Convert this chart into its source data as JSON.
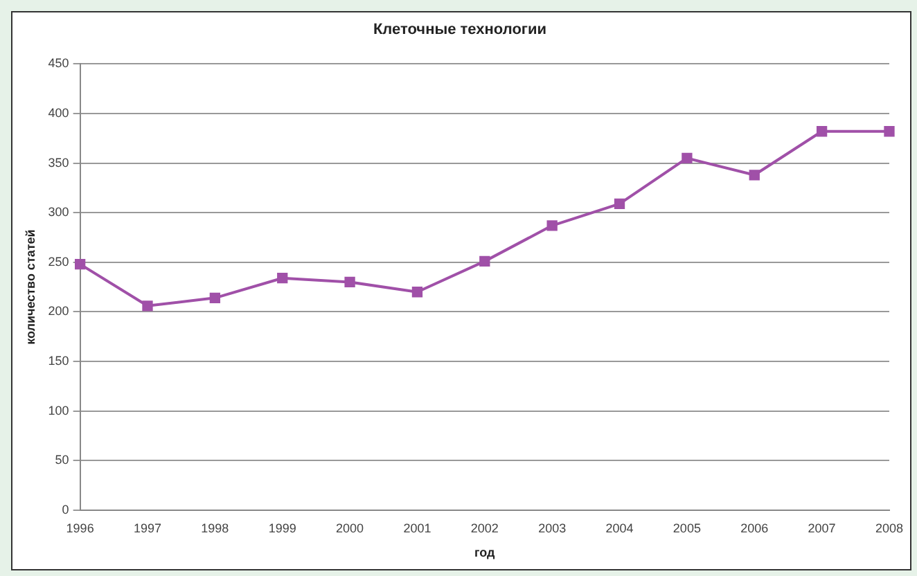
{
  "chart_data": {
    "type": "line",
    "title": "Клеточные технологии",
    "xlabel": "год",
    "ylabel": "количество статей",
    "categories": [
      "1996",
      "1997",
      "1998",
      "1999",
      "2000",
      "2001",
      "2002",
      "2003",
      "2004",
      "2005",
      "2006",
      "2007",
      "2008"
    ],
    "series": [
      {
        "color": "#a050a8",
        "values": [
          248,
          206,
          214,
          234,
          230,
          220,
          251,
          287,
          309,
          355,
          338,
          382,
          382
        ]
      }
    ],
    "ylim": [
      0,
      450
    ],
    "yticks": [
      0,
      50,
      100,
      150,
      200,
      250,
      300,
      350,
      400,
      450
    ],
    "grid": "y",
    "legend": false,
    "marker": "square",
    "line_style": "solid"
  }
}
